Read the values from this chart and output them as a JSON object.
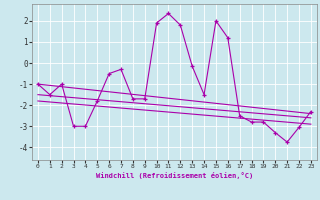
{
  "xlabel": "Windchill (Refroidissement éolien,°C)",
  "background_color": "#cce8ee",
  "grid_color": "#aad4dc",
  "line_color": "#aa00aa",
  "xlim": [
    -0.5,
    23.5
  ],
  "ylim": [
    -4.6,
    2.8
  ],
  "yticks": [
    -4,
    -3,
    -2,
    -1,
    0,
    1,
    2
  ],
  "xticks": [
    0,
    1,
    2,
    3,
    4,
    5,
    6,
    7,
    8,
    9,
    10,
    11,
    12,
    13,
    14,
    15,
    16,
    17,
    18,
    19,
    20,
    21,
    22,
    23
  ],
  "series1_x": [
    0,
    1,
    2,
    3,
    4,
    5,
    6,
    7,
    8,
    9,
    10,
    11,
    12,
    13,
    14,
    15,
    16,
    17,
    18,
    19,
    20,
    21,
    22,
    23
  ],
  "series1_y": [
    -1.0,
    -1.5,
    -1.0,
    -3.0,
    -3.0,
    -1.8,
    -0.5,
    -0.3,
    -1.7,
    -1.7,
    1.9,
    2.35,
    1.8,
    -0.15,
    -1.5,
    2.0,
    1.2,
    -2.5,
    -2.8,
    -2.8,
    -3.3,
    -3.75,
    -3.05,
    -2.3
  ],
  "trend1_x": [
    0,
    23
  ],
  "trend1_y": [
    -1.0,
    -2.4
  ],
  "trend2_x": [
    0,
    23
  ],
  "trend2_y": [
    -1.5,
    -2.6
  ],
  "trend3_x": [
    0,
    23
  ],
  "trend3_y": [
    -1.8,
    -2.9
  ],
  "trend4_x": [
    0,
    11,
    23
  ],
  "trend4_y": [
    -1.0,
    -1.75,
    -2.4
  ]
}
